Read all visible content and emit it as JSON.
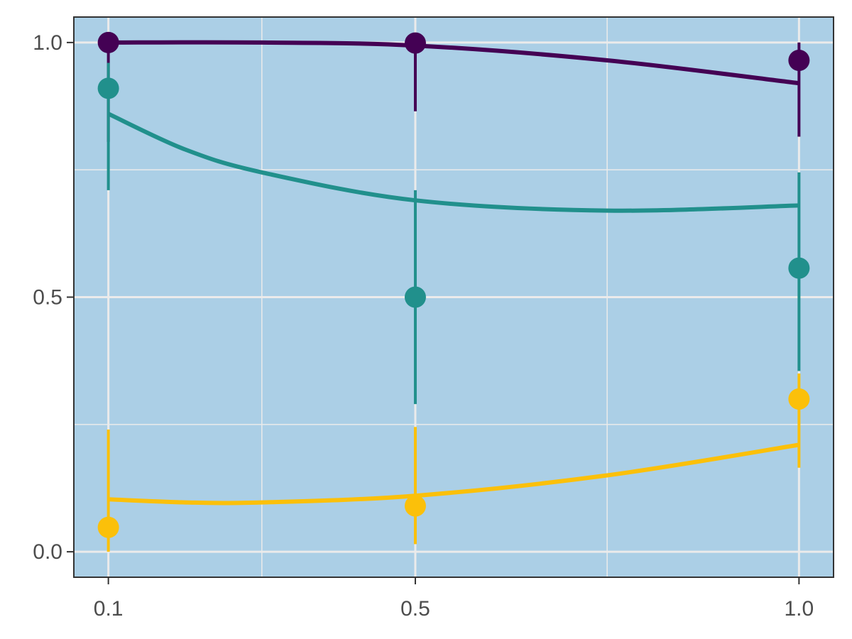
{
  "chart_data": {
    "type": "line",
    "title": "",
    "xlabel": "",
    "ylabel": "",
    "x_ticks": [
      {
        "value": 0.1,
        "label": "0.1"
      },
      {
        "value": 0.5,
        "label": "0.5"
      },
      {
        "value": 1.0,
        "label": "1.0"
      }
    ],
    "y_ticks": [
      {
        "value": 0.0,
        "label": "0.0"
      },
      {
        "value": 0.5,
        "label": "0.5"
      },
      {
        "value": 1.0,
        "label": "1.0"
      }
    ],
    "x_minor_gridlines": [
      0.3,
      0.75
    ],
    "y_minor_gridlines": [
      0.25,
      0.75
    ],
    "xlim": [
      0.055,
      1.045
    ],
    "ylim": [
      -0.05,
      1.05
    ],
    "grid": true,
    "legend": "none",
    "panel_background": "#abcfe6",
    "series": [
      {
        "color": "#440154",
        "points": [
          {
            "x": 0.1,
            "y": 1.0,
            "lower": 0.805,
            "upper": 1.0
          },
          {
            "x": 0.5,
            "y": 0.999,
            "lower": 0.865,
            "upper": 1.0
          },
          {
            "x": 1.0,
            "y": 0.965,
            "lower": 0.815,
            "upper": 1.0
          }
        ],
        "fit": [
          [
            0.1,
            1.0
          ],
          [
            0.3,
            1.0
          ],
          [
            0.5,
            0.994
          ],
          [
            0.75,
            0.965
          ],
          [
            1.0,
            0.92
          ]
        ]
      },
      {
        "color": "#21908c",
        "points": [
          {
            "x": 0.1,
            "y": 0.91,
            "lower": 0.71,
            "upper": 0.96
          },
          {
            "x": 0.5,
            "y": 0.5,
            "lower": 0.29,
            "upper": 0.71
          },
          {
            "x": 1.0,
            "y": 0.557,
            "lower": 0.355,
            "upper": 0.745
          }
        ],
        "fit": [
          [
            0.1,
            0.86
          ],
          [
            0.2,
            0.79
          ],
          [
            0.3,
            0.745
          ],
          [
            0.5,
            0.69
          ],
          [
            0.75,
            0.67
          ],
          [
            1.0,
            0.68
          ]
        ]
      },
      {
        "color": "#fbc00a",
        "points": [
          {
            "x": 0.1,
            "y": 0.048,
            "lower": 0.0,
            "upper": 0.24
          },
          {
            "x": 0.5,
            "y": 0.09,
            "lower": 0.015,
            "upper": 0.245
          },
          {
            "x": 1.0,
            "y": 0.3,
            "lower": 0.165,
            "upper": 0.35
          }
        ],
        "fit": [
          [
            0.1,
            0.103
          ],
          [
            0.2,
            0.097
          ],
          [
            0.3,
            0.097
          ],
          [
            0.5,
            0.11
          ],
          [
            0.75,
            0.15
          ],
          [
            1.0,
            0.21
          ]
        ]
      }
    ]
  }
}
